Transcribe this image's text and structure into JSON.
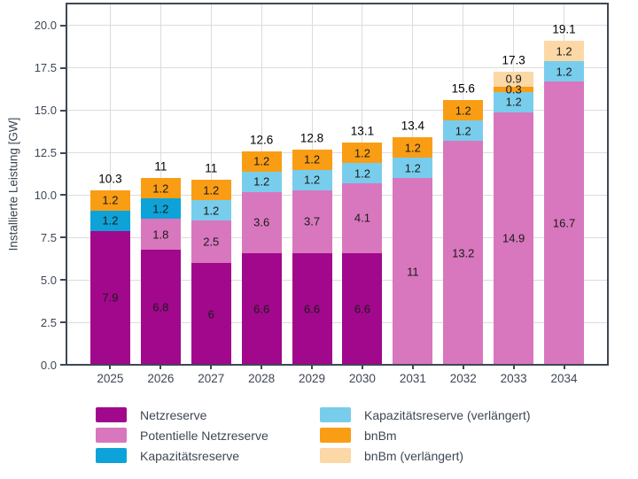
{
  "figure": {
    "ylabel": "Installierte Leistung [GW]"
  },
  "chart_data": {
    "type": "bar",
    "stacked": true,
    "title": "",
    "xlabel": "",
    "ylabel": "Installierte Leistung [GW]",
    "categories": [
      "2025",
      "2026",
      "2027",
      "2028",
      "2029",
      "2030",
      "2031",
      "2032",
      "2033",
      "2034"
    ],
    "series": [
      {
        "name": "Netzreserve",
        "color": "#a1088c",
        "values": [
          7.9,
          6.8,
          6,
          6.6,
          6.6,
          6.6,
          0,
          0,
          0,
          0
        ]
      },
      {
        "name": "Potentielle Netzreserve",
        "color": "#d877be",
        "values": [
          0,
          1.8,
          2.5,
          3.6,
          3.7,
          4.1,
          11,
          13.2,
          14.9,
          16.7
        ]
      },
      {
        "name": "Kapazitätsreserve",
        "color": "#0ea3d8",
        "values": [
          1.2,
          1.2,
          0,
          0,
          0,
          0,
          0,
          0,
          0,
          0
        ]
      },
      {
        "name": "Kapazitätsreserve (verlängert)",
        "color": "#79cdec",
        "values": [
          0,
          0,
          1.2,
          1.2,
          1.2,
          1.2,
          1.2,
          1.2,
          1.2,
          1.2
        ]
      },
      {
        "name": "bnBm",
        "color": "#f99d15",
        "values": [
          1.2,
          1.2,
          1.2,
          1.2,
          1.2,
          1.2,
          1.2,
          1.2,
          0.3,
          0
        ]
      },
      {
        "name": "bnBm (verlängert)",
        "color": "#fbd8a6",
        "values": [
          0,
          0,
          0,
          0,
          0,
          0,
          0,
          0,
          0.9,
          1.2
        ]
      }
    ],
    "totals": [
      "10.3",
      "11",
      "11",
      "12.6",
      "12.8",
      "13.1",
      "13.4",
      "15.6",
      "17.3",
      "19.1"
    ],
    "yticks": [
      "0.0",
      "2.5",
      "5.0",
      "7.5",
      "10.0",
      "12.5",
      "15.0",
      "17.5",
      "20.0"
    ],
    "ylim": [
      0,
      21.3
    ],
    "grid": true,
    "legend_position": "bottom",
    "style": {
      "axis_color": "#3e4754",
      "grid_color": "#dcdcdc",
      "background": "#ffffff",
      "segment_label_color": "#1a1a1a",
      "total_label_color": "#000000"
    }
  }
}
